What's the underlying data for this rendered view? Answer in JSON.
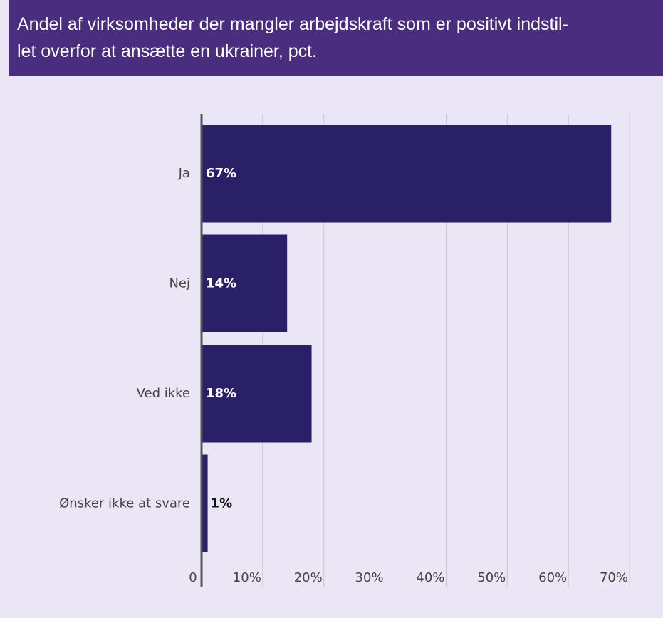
{
  "chart_data": {
    "type": "hbar",
    "title": [
      "Andel af virksomheder der mangler arbejdskraft som er positivt indstil-",
      "let overfor at ansætte en ukrainer, pct."
    ],
    "categories": [
      "Ja",
      "Nej",
      "Ved ikke",
      "Ønsker ikke at svare"
    ],
    "values": [
      67,
      14,
      18,
      1
    ],
    "value_labels": [
      "67%",
      "14%",
      "18%",
      "1%"
    ],
    "color": "#2a2068",
    "xlim": [
      0,
      70
    ],
    "xticks": [
      0,
      {
        "value": 10,
        "label": "10%"
      },
      {
        "value": 20,
        "label": "20%"
      },
      {
        "value": 30,
        "label": "30%"
      },
      {
        "value": 40,
        "label": "40%"
      },
      {
        "value": 50,
        "label": "50%"
      },
      {
        "value": 60,
        "label": "60%"
      },
      {
        "value": 70,
        "label": "70%"
      }
    ],
    "grid": true
  }
}
